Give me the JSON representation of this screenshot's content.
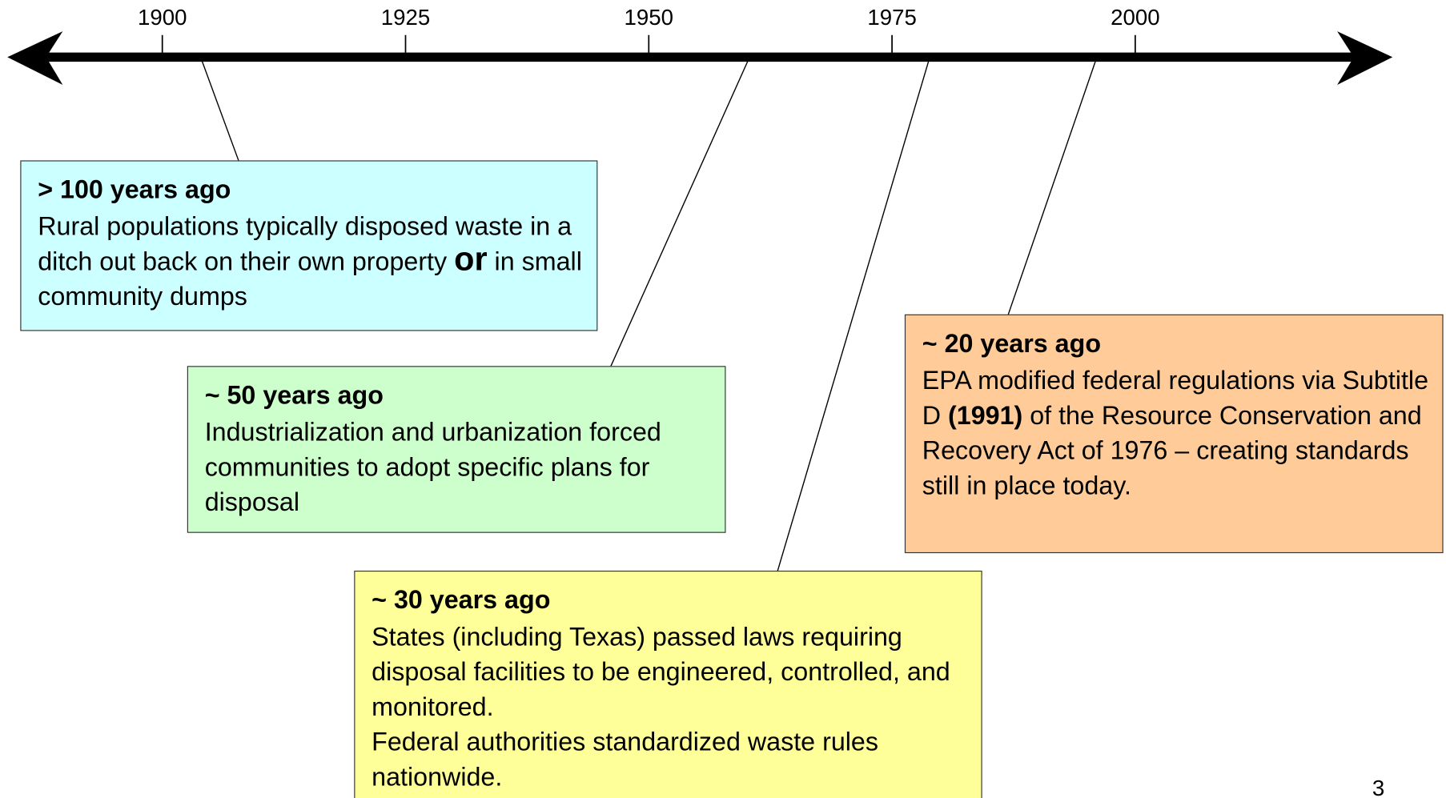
{
  "axis": {
    "ticks": [
      1900,
      1925,
      1950,
      1975,
      2000
    ]
  },
  "events": [
    {
      "heading": "> 100 years ago",
      "color": "#ccffff",
      "body": [
        [
          {
            "text": "Rural populations typically disposed waste in a ditch out back on their own property "
          },
          {
            "text": "or",
            "style": "large-bold"
          },
          {
            "text": " in small community dumps"
          }
        ]
      ]
    },
    {
      "heading": "~ 50 years ago",
      "color": "#ccffcc",
      "body": [
        [
          {
            "text": "Industrialization and urbanization forced communities to adopt specific plans for disposal"
          }
        ]
      ]
    },
    {
      "heading": "~ 30 years ago",
      "color": "#ffff99",
      "body": [
        [
          {
            "text": "States (including Texas) passed laws requiring disposal facilities to be engineered, controlled, and monitored."
          }
        ],
        [
          {
            "text": "Federal authorities standardized waste rules nationwide."
          }
        ]
      ]
    },
    {
      "heading": "~ 20 years ago",
      "color": "#ffcc99",
      "body": [
        [
          {
            "text": "EPA modified federal regulations via Subtitle D "
          },
          {
            "text": "(1991)",
            "style": "bold"
          },
          {
            "text": " of the Resource Conservation and Recovery Act  of 1976 – creating standards still in place today."
          }
        ]
      ]
    }
  ],
  "page_number": "3"
}
